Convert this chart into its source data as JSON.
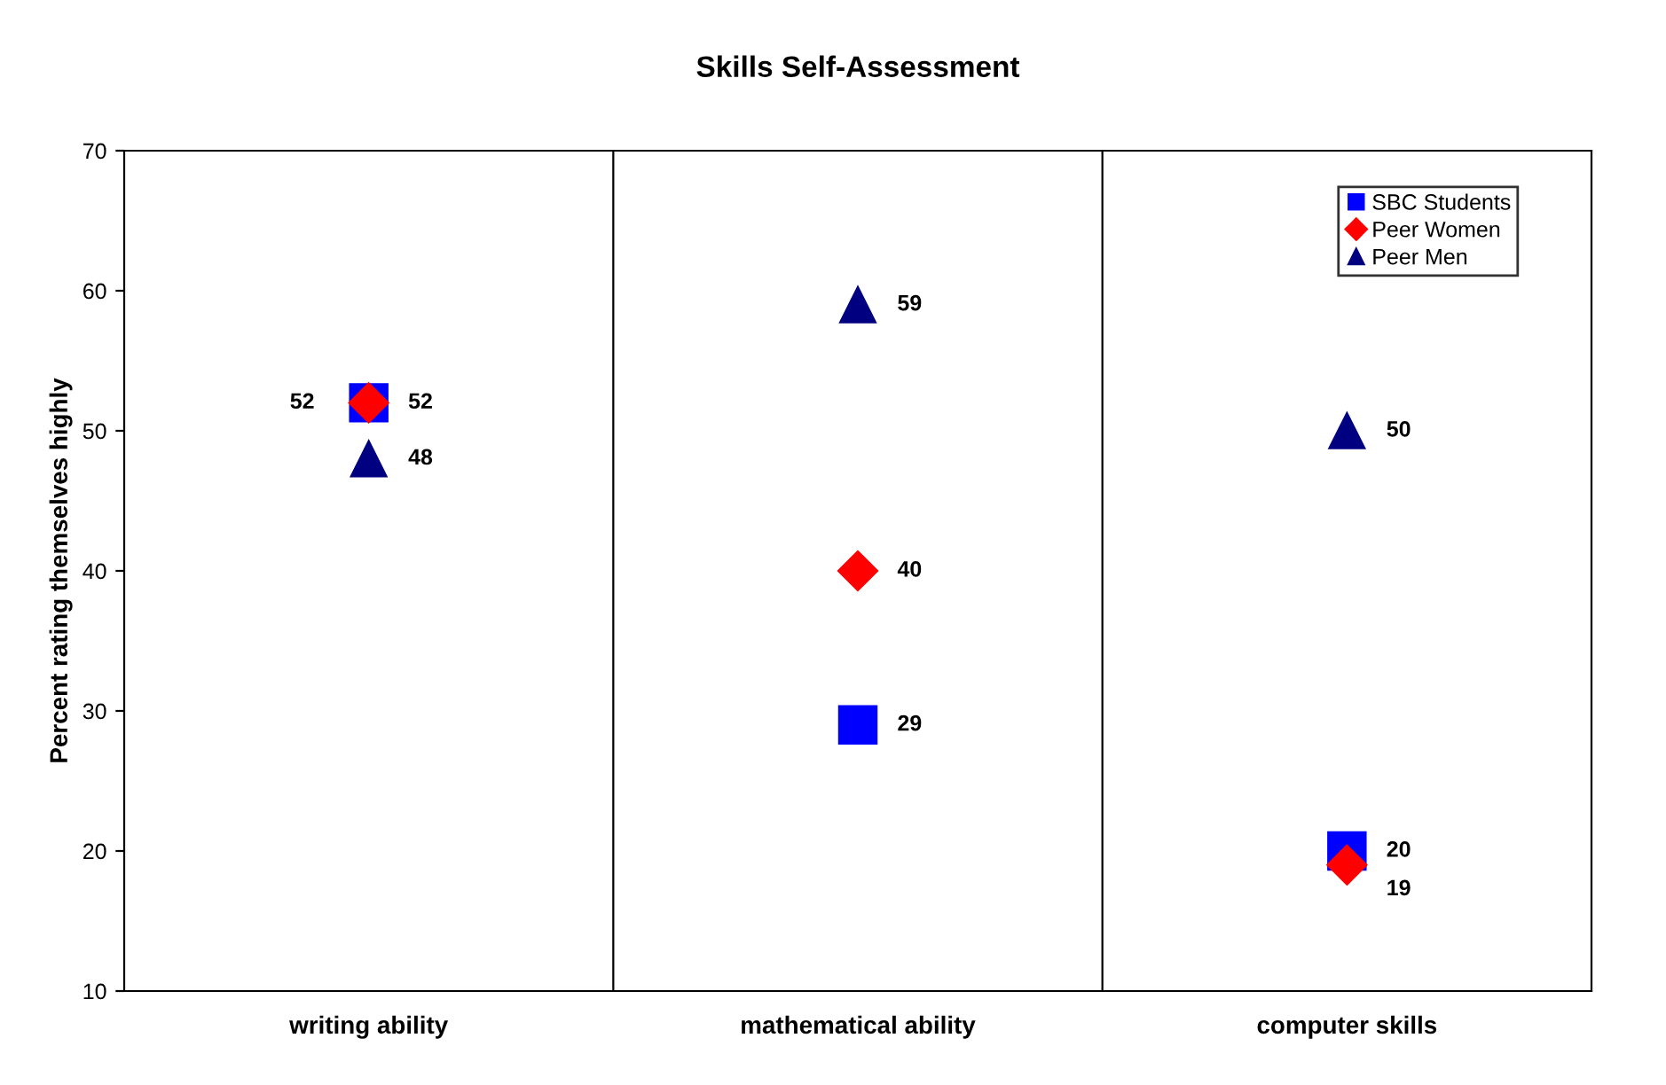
{
  "chart_data": {
    "type": "scatter",
    "title": "Skills Self-Assessment",
    "ylabel": "Percent rating themselves highly",
    "categories": [
      "writing ability",
      "mathematical ability",
      "computer skills"
    ],
    "series": [
      {
        "name": "SBC Students",
        "color": "#0000ff",
        "marker": "square",
        "values": [
          52,
          29,
          20
        ]
      },
      {
        "name": "Peer Women",
        "color": "#ff0000",
        "marker": "diamond",
        "values": [
          52,
          40,
          19
        ]
      },
      {
        "name": "Peer Men",
        "color": "#000080",
        "marker": "triangle",
        "values": [
          48,
          59,
          50
        ]
      }
    ],
    "ylim": [
      10,
      70
    ],
    "yticks": [
      10,
      20,
      30,
      40,
      50,
      60,
      70
    ],
    "grid": "x",
    "legend": "top right",
    "data_labels": true
  }
}
